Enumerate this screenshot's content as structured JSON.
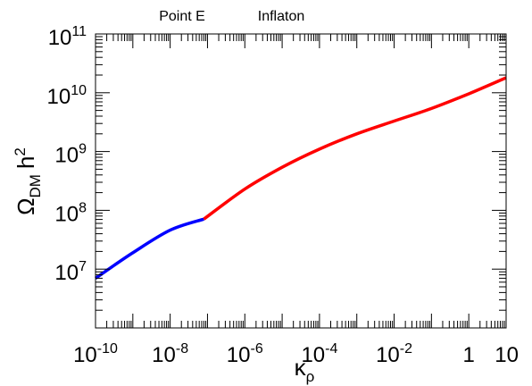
{
  "chart_data": {
    "type": "line",
    "title_left": "Point E",
    "title_right": "Inflaton",
    "xlabel": {
      "symbol": "κ",
      "subscript": "ρ"
    },
    "ylabel": {
      "symbol": "Ω",
      "subscript": "DM",
      "suffix": "h",
      "superscript": "2"
    },
    "x_scale": "log",
    "y_scale": "log",
    "xlim": [
      1e-10,
      10
    ],
    "ylim": [
      1000000.0,
      100000000000.0
    ],
    "grid": false,
    "x_ticks": [
      {
        "value": 1e-10,
        "base": "10",
        "exp": "-10"
      },
      {
        "value": 1e-08,
        "base": "10",
        "exp": "-8"
      },
      {
        "value": 1e-06,
        "base": "10",
        "exp": "-6"
      },
      {
        "value": 0.0001,
        "base": "10",
        "exp": "-4"
      },
      {
        "value": 0.01,
        "base": "10",
        "exp": "-2"
      },
      {
        "value": 1,
        "base": "1",
        "exp": ""
      },
      {
        "value": 10,
        "base": "10",
        "exp": ""
      }
    ],
    "y_ticks": [
      {
        "value": 10000000.0,
        "base": "10",
        "exp": "7"
      },
      {
        "value": 100000000.0,
        "base": "10",
        "exp": "8"
      },
      {
        "value": 1000000000.0,
        "base": "10",
        "exp": "9"
      },
      {
        "value": 10000000000.0,
        "base": "10",
        "exp": "10"
      },
      {
        "value": 100000000000.0,
        "base": "10",
        "exp": "11"
      }
    ],
    "series": [
      {
        "color": "#0000ff",
        "x": [
          1e-10,
          1e-09,
          1e-08,
          8e-08
        ],
        "y": [
          7000000.0,
          19000000.0,
          46000000.0,
          71000000.0
        ]
      },
      {
        "color": "#ff0000",
        "x": [
          8e-08,
          1e-06,
          1e-05,
          0.0001,
          0.001,
          0.01,
          0.1,
          1,
          10
        ],
        "y": [
          71000000.0,
          230000000.0,
          540000000.0,
          1100000000.0,
          2000000000.0,
          3300000000.0,
          5400000000.0,
          9600000000.0,
          18000000000.0
        ]
      }
    ]
  }
}
